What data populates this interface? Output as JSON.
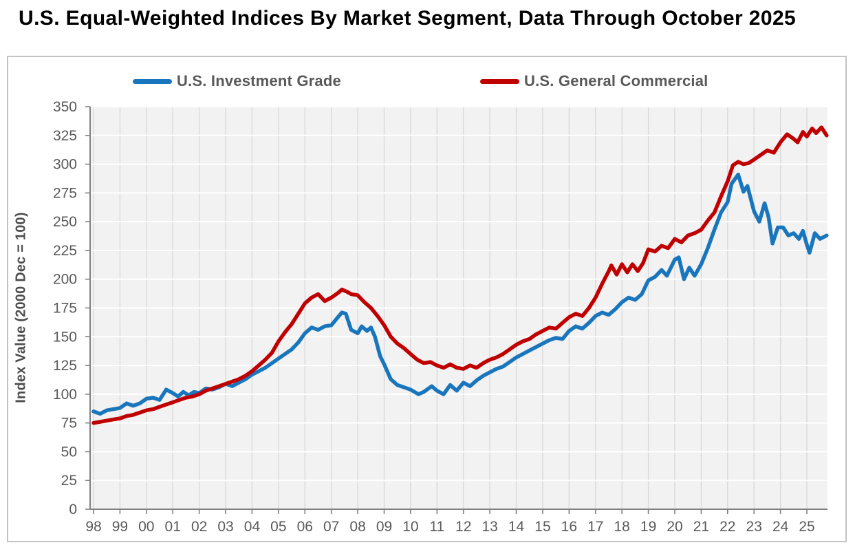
{
  "page": {
    "title": "U.S. Equal-Weighted Indices By Market Segment, Data Through October 2025"
  },
  "legend": {
    "items": [
      {
        "label": "U.S. Investment Grade",
        "color": "#1A76BC"
      },
      {
        "label": "U.S. General Commercial",
        "color": "#C00000"
      }
    ]
  },
  "chart_data": {
    "type": "line",
    "title": "U.S. Equal-Weighted Indices By Market Segment, Data Through October 2025",
    "xlabel": "",
    "ylabel": "Index Value (2000 Dec = 100)",
    "ylim": [
      0,
      350
    ],
    "yticks": [
      0,
      25,
      50,
      75,
      100,
      125,
      150,
      175,
      200,
      225,
      250,
      275,
      300,
      325,
      350
    ],
    "xlim": [
      1997.87,
      2025.78
    ],
    "x_tick_years": [
      1998,
      1999,
      2000,
      2001,
      2002,
      2003,
      2004,
      2005,
      2006,
      2007,
      2008,
      2009,
      2010,
      2011,
      2012,
      2013,
      2014,
      2015,
      2016,
      2017,
      2018,
      2019,
      2020,
      2021,
      2022,
      2023,
      2024,
      2025
    ],
    "x_tick_labels": [
      "98",
      "99",
      "00",
      "01",
      "02",
      "03",
      "04",
      "05",
      "06",
      "07",
      "08",
      "09",
      "10",
      "11",
      "12",
      "13",
      "14",
      "15",
      "16",
      "17",
      "18",
      "19",
      "20",
      "21",
      "22",
      "23",
      "24",
      "25"
    ],
    "grid": {
      "horizontal": true,
      "vertical": true
    },
    "legend_position": "top",
    "style": {
      "plot_bg": "#F2F2F2",
      "h_grid_color": "#FFFFFF",
      "v_grid_color": "#D8D8D8",
      "axis_color": "#808080",
      "tick_label_color": "#595959",
      "line_width": 5.5
    },
    "series": [
      {
        "name": "U.S. Investment Grade",
        "color": "#1A76BC",
        "points": [
          [
            1998,
            85
          ],
          [
            1998.25,
            83
          ],
          [
            1998.5,
            86
          ],
          [
            1998.75,
            87
          ],
          [
            1999,
            88
          ],
          [
            1999.25,
            92
          ],
          [
            1999.5,
            90
          ],
          [
            1999.75,
            92
          ],
          [
            2000,
            96
          ],
          [
            2000.25,
            97
          ],
          [
            2000.5,
            95
          ],
          [
            2000.75,
            104
          ],
          [
            2001,
            101
          ],
          [
            2001.2,
            98
          ],
          [
            2001.4,
            102
          ],
          [
            2001.6,
            99
          ],
          [
            2001.8,
            102
          ],
          [
            2002,
            101
          ],
          [
            2002.25,
            105
          ],
          [
            2002.5,
            104
          ],
          [
            2002.75,
            106
          ],
          [
            2003,
            109
          ],
          [
            2003.25,
            107
          ],
          [
            2003.5,
            110
          ],
          [
            2003.75,
            113
          ],
          [
            2004,
            117
          ],
          [
            2004.25,
            120
          ],
          [
            2004.5,
            123
          ],
          [
            2004.75,
            127
          ],
          [
            2005,
            131
          ],
          [
            2005.25,
            135
          ],
          [
            2005.5,
            139
          ],
          [
            2005.75,
            145
          ],
          [
            2006,
            153
          ],
          [
            2006.25,
            158
          ],
          [
            2006.5,
            156
          ],
          [
            2006.75,
            159
          ],
          [
            2007,
            160
          ],
          [
            2007.25,
            167
          ],
          [
            2007.4,
            171
          ],
          [
            2007.55,
            170
          ],
          [
            2007.75,
            156
          ],
          [
            2008,
            153
          ],
          [
            2008.15,
            159
          ],
          [
            2008.35,
            155
          ],
          [
            2008.5,
            158
          ],
          [
            2008.65,
            150
          ],
          [
            2008.85,
            133
          ],
          [
            2009,
            126
          ],
          [
            2009.25,
            113
          ],
          [
            2009.5,
            108
          ],
          [
            2009.75,
            106
          ],
          [
            2010,
            104
          ],
          [
            2010.3,
            100
          ],
          [
            2010.5,
            102
          ],
          [
            2010.8,
            107
          ],
          [
            2011,
            103
          ],
          [
            2011.25,
            100
          ],
          [
            2011.5,
            108
          ],
          [
            2011.75,
            103
          ],
          [
            2012,
            110
          ],
          [
            2012.25,
            107
          ],
          [
            2012.5,
            112
          ],
          [
            2012.75,
            116
          ],
          [
            2013,
            119
          ],
          [
            2013.25,
            122
          ],
          [
            2013.5,
            124
          ],
          [
            2013.75,
            128
          ],
          [
            2014,
            132
          ],
          [
            2014.25,
            135
          ],
          [
            2014.5,
            138
          ],
          [
            2014.75,
            141
          ],
          [
            2015,
            144
          ],
          [
            2015.25,
            147
          ],
          [
            2015.5,
            149
          ],
          [
            2015.75,
            148
          ],
          [
            2016,
            155
          ],
          [
            2016.25,
            159
          ],
          [
            2016.5,
            157
          ],
          [
            2016.75,
            162
          ],
          [
            2017,
            168
          ],
          [
            2017.25,
            171
          ],
          [
            2017.5,
            169
          ],
          [
            2017.75,
            174
          ],
          [
            2018,
            180
          ],
          [
            2018.25,
            184
          ],
          [
            2018.5,
            182
          ],
          [
            2018.75,
            187
          ],
          [
            2019,
            199
          ],
          [
            2019.25,
            202
          ],
          [
            2019.5,
            208
          ],
          [
            2019.7,
            203
          ],
          [
            2020,
            217
          ],
          [
            2020.15,
            219
          ],
          [
            2020.35,
            200
          ],
          [
            2020.55,
            210
          ],
          [
            2020.75,
            203
          ],
          [
            2021,
            213
          ],
          [
            2021.25,
            227
          ],
          [
            2021.5,
            243
          ],
          [
            2021.75,
            258
          ],
          [
            2022,
            267
          ],
          [
            2022.15,
            283
          ],
          [
            2022.4,
            291
          ],
          [
            2022.6,
            276
          ],
          [
            2022.75,
            281
          ],
          [
            2023,
            259
          ],
          [
            2023.2,
            250
          ],
          [
            2023.4,
            266
          ],
          [
            2023.55,
            254
          ],
          [
            2023.7,
            231
          ],
          [
            2023.9,
            245
          ],
          [
            2024.1,
            245
          ],
          [
            2024.3,
            238
          ],
          [
            2024.5,
            240
          ],
          [
            2024.7,
            235
          ],
          [
            2024.85,
            242
          ],
          [
            2025,
            230
          ],
          [
            2025.1,
            223
          ],
          [
            2025.3,
            240
          ],
          [
            2025.5,
            235
          ],
          [
            2025.75,
            238
          ]
        ]
      },
      {
        "name": "U.S. General Commercial",
        "color": "#C00000",
        "points": [
          [
            1998,
            75
          ],
          [
            1998.25,
            76
          ],
          [
            1998.5,
            77
          ],
          [
            1998.75,
            78
          ],
          [
            1999,
            79
          ],
          [
            1999.25,
            81
          ],
          [
            1999.5,
            82
          ],
          [
            1999.75,
            84
          ],
          [
            2000,
            86
          ],
          [
            2000.25,
            87
          ],
          [
            2000.5,
            89
          ],
          [
            2000.75,
            91
          ],
          [
            2001,
            93
          ],
          [
            2001.25,
            95
          ],
          [
            2001.5,
            97
          ],
          [
            2001.75,
            98
          ],
          [
            2002,
            100
          ],
          [
            2002.25,
            103
          ],
          [
            2002.5,
            105
          ],
          [
            2002.75,
            107
          ],
          [
            2003,
            109
          ],
          [
            2003.25,
            111
          ],
          [
            2003.5,
            113
          ],
          [
            2003.75,
            116
          ],
          [
            2004,
            120
          ],
          [
            2004.25,
            125
          ],
          [
            2004.5,
            130
          ],
          [
            2004.75,
            136
          ],
          [
            2005,
            146
          ],
          [
            2005.25,
            154
          ],
          [
            2005.5,
            161
          ],
          [
            2005.75,
            170
          ],
          [
            2006,
            179
          ],
          [
            2006.25,
            184
          ],
          [
            2006.5,
            187
          ],
          [
            2006.75,
            181
          ],
          [
            2007,
            184
          ],
          [
            2007.25,
            188
          ],
          [
            2007.4,
            191
          ],
          [
            2007.6,
            189
          ],
          [
            2007.75,
            187
          ],
          [
            2008,
            186
          ],
          [
            2008.25,
            180
          ],
          [
            2008.5,
            175
          ],
          [
            2008.75,
            168
          ],
          [
            2009,
            160
          ],
          [
            2009.25,
            150
          ],
          [
            2009.5,
            144
          ],
          [
            2009.75,
            140
          ],
          [
            2010,
            135
          ],
          [
            2010.25,
            130
          ],
          [
            2010.5,
            127
          ],
          [
            2010.75,
            128
          ],
          [
            2011,
            125
          ],
          [
            2011.25,
            123
          ],
          [
            2011.5,
            126
          ],
          [
            2011.75,
            123
          ],
          [
            2012,
            122
          ],
          [
            2012.25,
            125
          ],
          [
            2012.5,
            123
          ],
          [
            2012.75,
            127
          ],
          [
            2013,
            130
          ],
          [
            2013.25,
            132
          ],
          [
            2013.5,
            135
          ],
          [
            2013.75,
            139
          ],
          [
            2014,
            143
          ],
          [
            2014.25,
            146
          ],
          [
            2014.5,
            148
          ],
          [
            2014.75,
            152
          ],
          [
            2015,
            155
          ],
          [
            2015.25,
            158
          ],
          [
            2015.5,
            157
          ],
          [
            2015.75,
            162
          ],
          [
            2016,
            167
          ],
          [
            2016.25,
            170
          ],
          [
            2016.5,
            168
          ],
          [
            2016.75,
            175
          ],
          [
            2017,
            184
          ],
          [
            2017.25,
            196
          ],
          [
            2017.5,
            207
          ],
          [
            2017.6,
            212
          ],
          [
            2017.8,
            204
          ],
          [
            2018,
            213
          ],
          [
            2018.2,
            206
          ],
          [
            2018.4,
            213
          ],
          [
            2018.6,
            207
          ],
          [
            2018.8,
            214
          ],
          [
            2019,
            226
          ],
          [
            2019.25,
            224
          ],
          [
            2019.5,
            229
          ],
          [
            2019.75,
            227
          ],
          [
            2020,
            235
          ],
          [
            2020.25,
            232
          ],
          [
            2020.5,
            238
          ],
          [
            2020.75,
            240
          ],
          [
            2021,
            243
          ],
          [
            2021.25,
            251
          ],
          [
            2021.5,
            258
          ],
          [
            2021.75,
            272
          ],
          [
            2022,
            285
          ],
          [
            2022.2,
            299
          ],
          [
            2022.4,
            302
          ],
          [
            2022.6,
            300
          ],
          [
            2022.8,
            301
          ],
          [
            2023,
            304
          ],
          [
            2023.25,
            308
          ],
          [
            2023.5,
            312
          ],
          [
            2023.75,
            310
          ],
          [
            2024,
            319
          ],
          [
            2024.25,
            326
          ],
          [
            2024.5,
            322
          ],
          [
            2024.65,
            319
          ],
          [
            2024.85,
            328
          ],
          [
            2025,
            324
          ],
          [
            2025.2,
            331
          ],
          [
            2025.35,
            327
          ],
          [
            2025.55,
            332
          ],
          [
            2025.75,
            325
          ]
        ]
      }
    ]
  }
}
